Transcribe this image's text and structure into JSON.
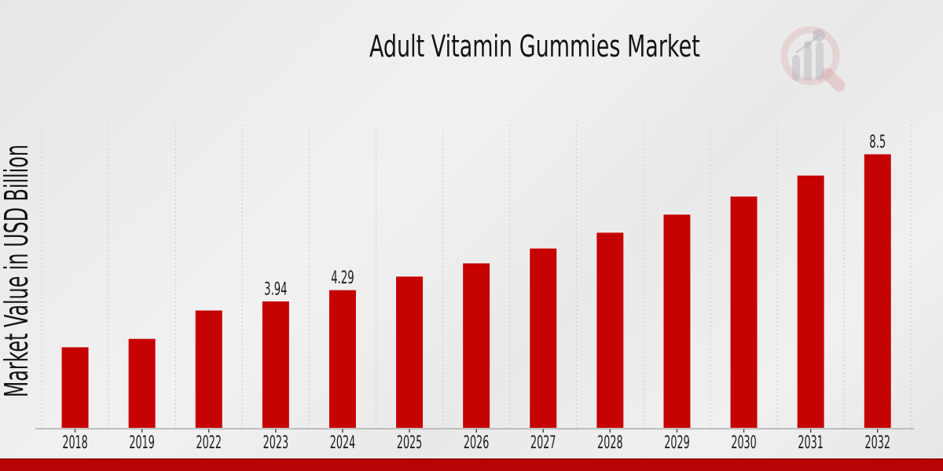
{
  "title": "Adult Vitamin Gummies Market",
  "ylabel": "Market Value in USD Billion",
  "chart_data": {
    "type": "bar",
    "title": "Adult Vitamin Gummies Market",
    "xlabel": "",
    "ylabel": "Market Value in USD Billion",
    "categories": [
      "2018",
      "2019",
      "2022",
      "2023",
      "2024",
      "2025",
      "2026",
      "2027",
      "2028",
      "2029",
      "2030",
      "2031",
      "2032"
    ],
    "values": [
      2.52,
      2.78,
      3.66,
      3.94,
      4.29,
      4.71,
      5.12,
      5.58,
      6.07,
      6.63,
      7.19,
      7.84,
      8.5
    ],
    "data_labels": {
      "2023": "3.94",
      "2024": "4.29",
      "2032": "8.5"
    },
    "ylim": [
      0,
      9.4
    ],
    "grid": "vertical-dashed",
    "legend": "none",
    "bar_color": "#c50303"
  },
  "colors": {
    "bar": "#c50303",
    "bar_edge": "#f2f2f2",
    "bottom_band": "#b80404",
    "bottom_band_edge": "#8f0101",
    "grid": "#c9c9c9",
    "axis": "#a8a8a8",
    "tick": "#3f3f3f",
    "text": "#1c1c1c"
  },
  "branding": {
    "watermark_icon": "magnifier-bar-chart-logo"
  }
}
